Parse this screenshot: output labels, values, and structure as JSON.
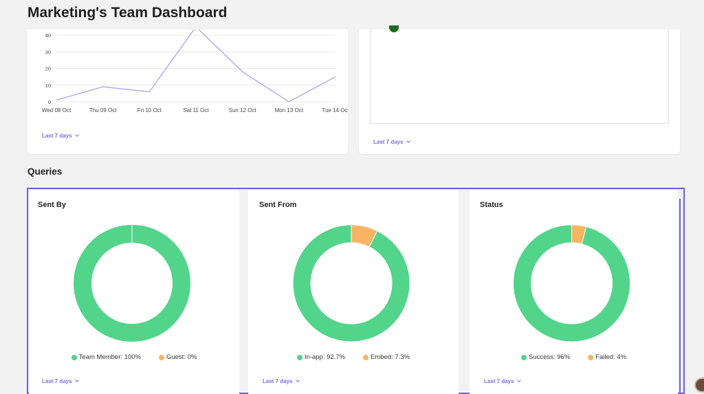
{
  "header": {
    "title": "Marketing's Team Dashboard"
  },
  "top_left_card": {
    "range_label": "Last 7 days",
    "chart_data": {
      "type": "line",
      "x": [
        "Wed 08 Oct",
        "Thu 09 Oct",
        "Fri 10 Oct",
        "Sat 11 Oct",
        "Sun 12 Oct",
        "Mon 13 Oct",
        "Tue 14 Oct"
      ],
      "y_ticks": [
        "0",
        "10",
        "20",
        "30",
        "40"
      ],
      "series": [
        {
          "values": [
            1,
            9,
            6,
            45,
            18,
            0,
            15
          ]
        }
      ],
      "ylim": [
        0,
        45
      ],
      "grid": true,
      "color": "#b3a6f0"
    }
  },
  "top_right_card": {
    "range_label": "Last 7 days"
  },
  "queries": {
    "section_title": "Queries",
    "cards": [
      {
        "title": "Sent By",
        "range_label": "Last 7 days",
        "chart_data": {
          "type": "pie",
          "slices": [
            {
              "label": "Team Member: 100%",
              "value": 100,
              "color": "#52d48b"
            },
            {
              "label": "Guest: 0%",
              "value": 0,
              "color": "#f9b463"
            }
          ]
        }
      },
      {
        "title": "Sent From",
        "range_label": "Last 7 days",
        "chart_data": {
          "type": "pie",
          "slices": [
            {
              "label": "In-app: 92.7%",
              "value": 92.7,
              "color": "#52d48b"
            },
            {
              "label": "Embed: 7.3%",
              "value": 7.3,
              "color": "#f9b463"
            }
          ]
        }
      },
      {
        "title": "Status",
        "range_label": "Last 7 days",
        "chart_data": {
          "type": "pie",
          "slices": [
            {
              "label": "Success: 96%",
              "value": 96,
              "color": "#52d48b"
            },
            {
              "label": "Failed: 4%",
              "value": 4,
              "color": "#f9b463"
            }
          ]
        }
      }
    ]
  }
}
